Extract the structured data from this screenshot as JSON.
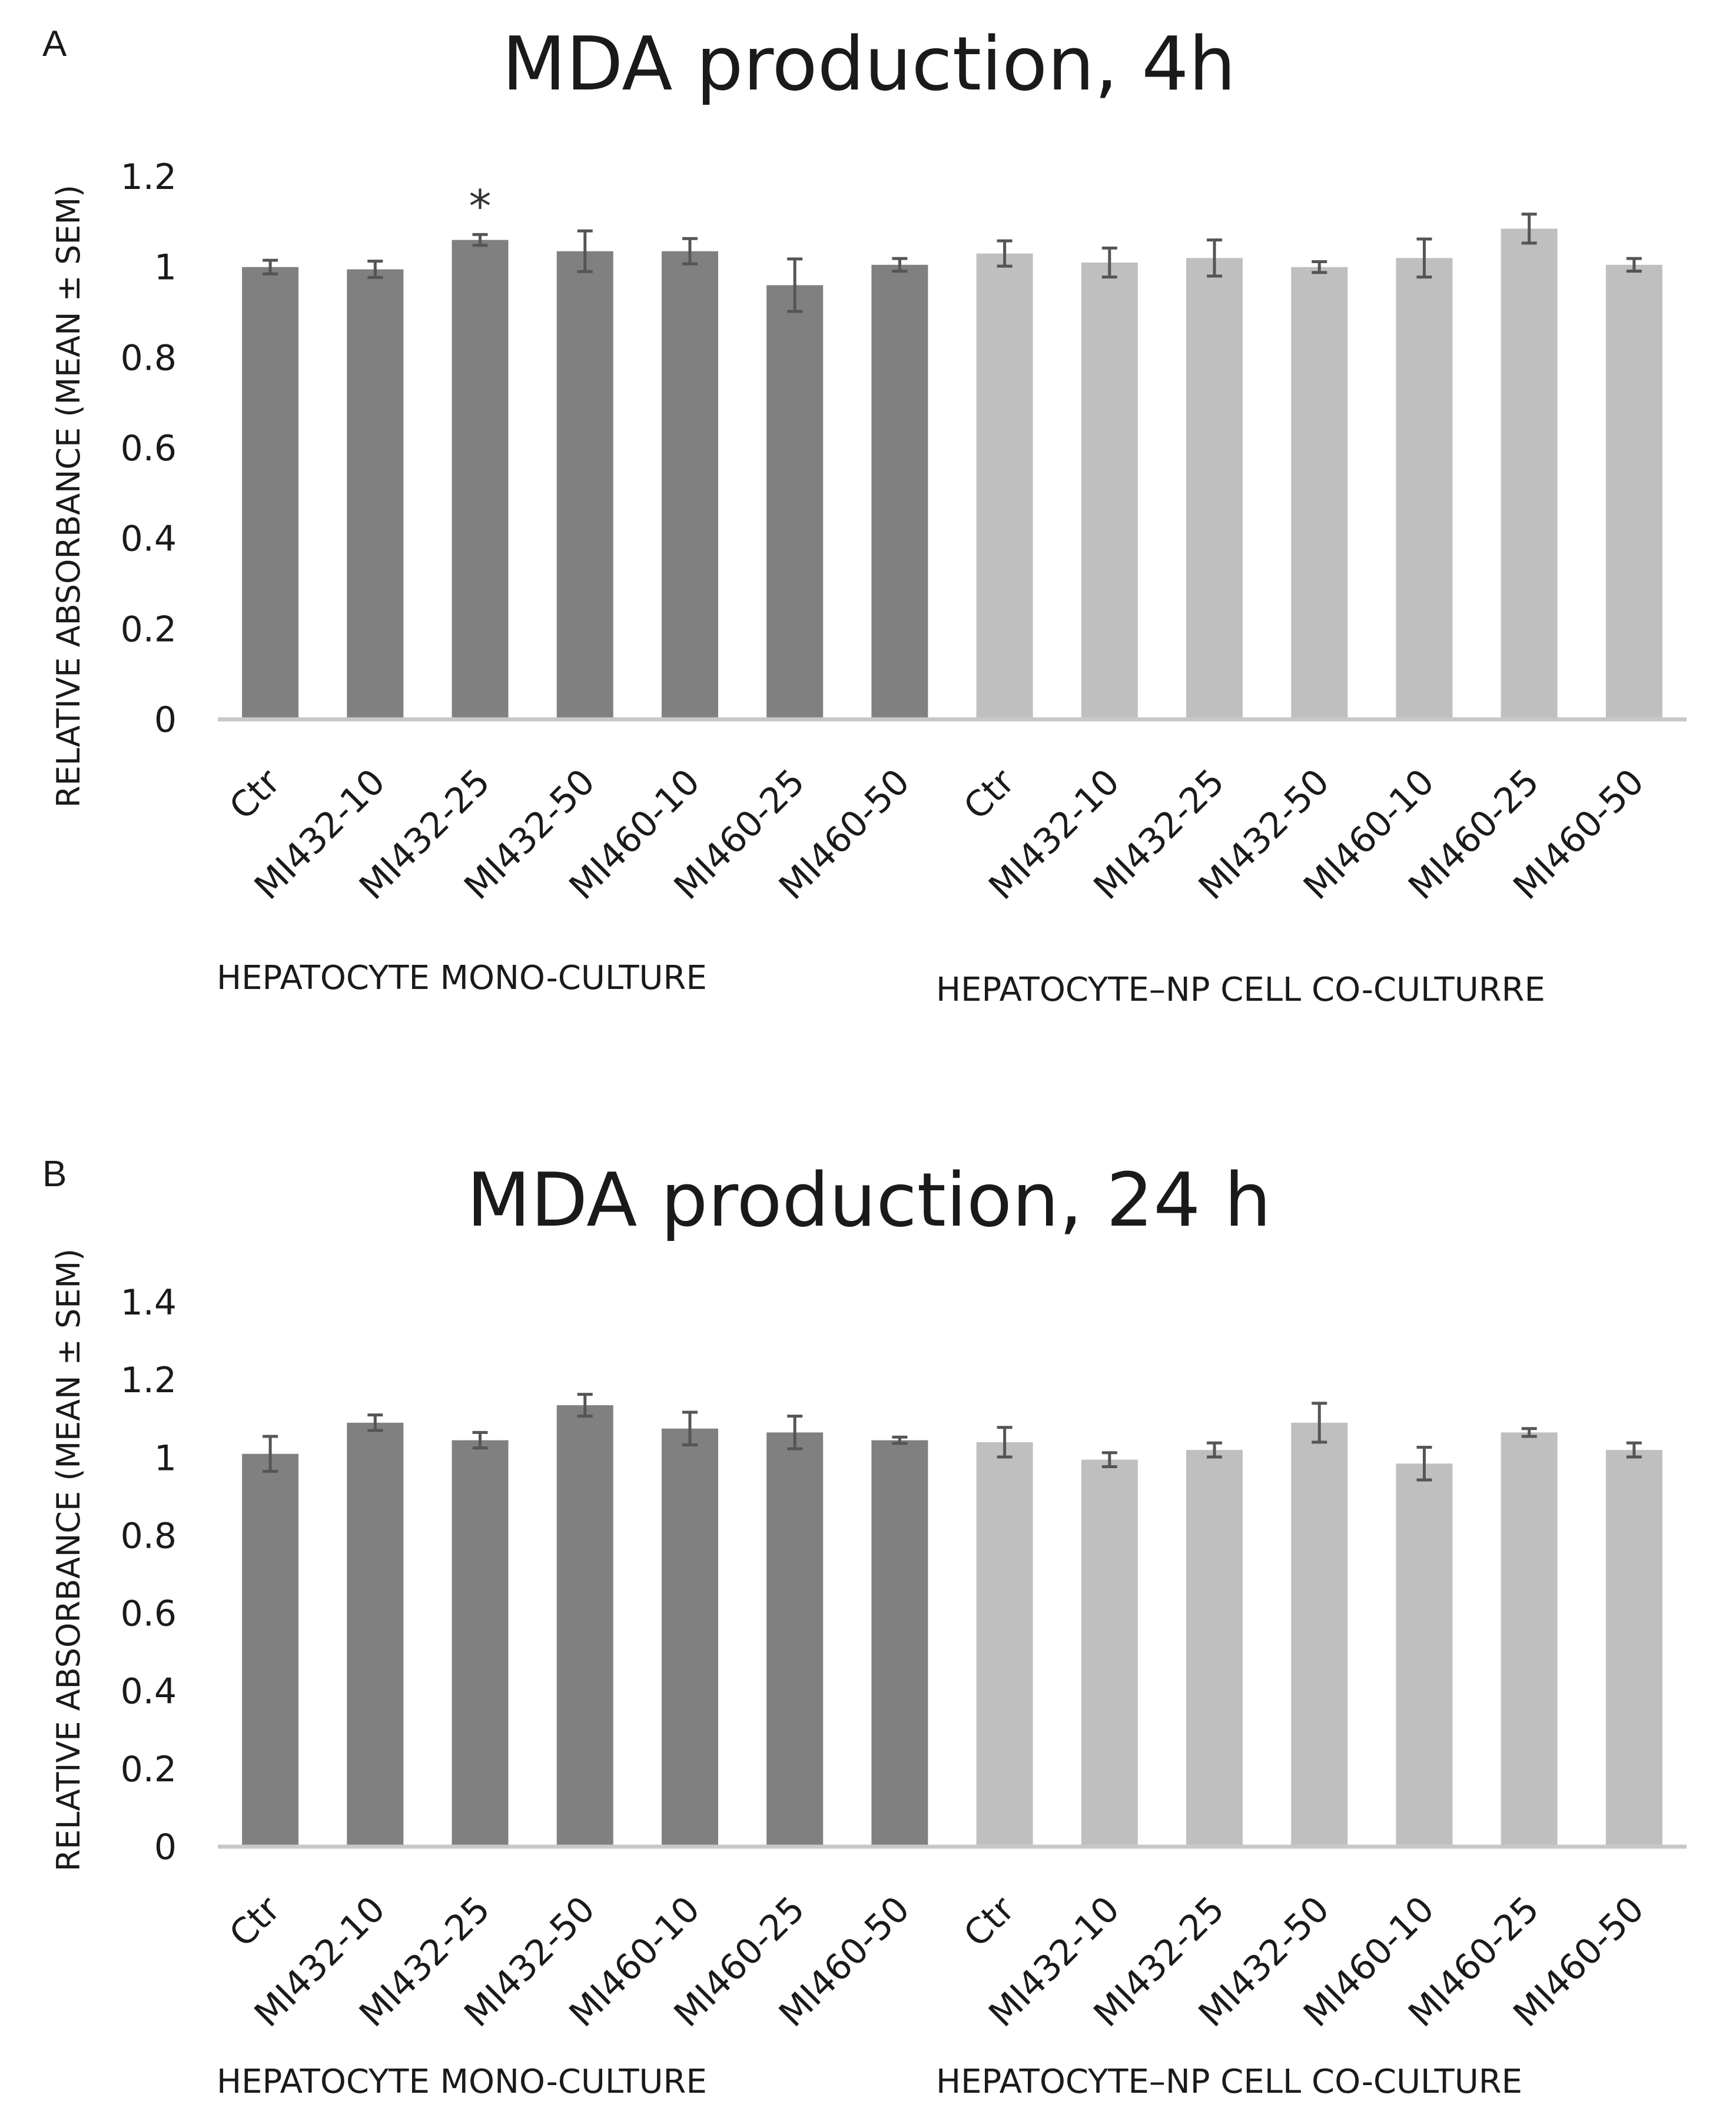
{
  "chart_data": [
    {
      "panel": "A",
      "type": "bar",
      "title": "MDA production, 4h",
      "ylabel": "RELATIVE ABSORBANCE (MEAN ± SEM)",
      "ylim": [
        0,
        1.2
      ],
      "yticks": [
        "0",
        "0.2",
        "0.4",
        "0.6",
        "0.8",
        "1",
        "1.2"
      ],
      "categories": [
        "Ctr",
        "MI432-10",
        "MI432-25",
        "MI432-50",
        "MI460-10",
        "MI460-25",
        "MI460-50",
        "Ctr",
        "MI432-10",
        "MI432-25",
        "MI432-50",
        "MI460-10",
        "MI460-25",
        "MI460-50"
      ],
      "values": [
        1.0,
        0.995,
        1.06,
        1.035,
        1.035,
        0.96,
        1.005,
        1.03,
        1.01,
        1.02,
        1.0,
        1.02,
        1.085,
        1.005
      ],
      "errors": [
        0.015,
        0.018,
        0.012,
        0.045,
        0.028,
        0.058,
        0.014,
        0.028,
        0.032,
        0.04,
        0.012,
        0.042,
        0.032,
        0.014
      ],
      "bar_colors": [
        "#808080",
        "#808080",
        "#808080",
        "#808080",
        "#808080",
        "#808080",
        "#808080",
        "#bfbfbf",
        "#bfbfbf",
        "#bfbfbf",
        "#bfbfbf",
        "#bfbfbf",
        "#bfbfbf",
        "#bfbfbf"
      ],
      "annotations": [
        {
          "index": 2,
          "text": "*"
        }
      ],
      "groups": [
        "HEPATOCYTE MONO-CULTURE",
        "HEPATOCYTE–NP CELL CO-CULTURRE"
      ]
    },
    {
      "panel": "B",
      "type": "bar",
      "title": "MDA production, 24 h",
      "ylabel": "RELATIVE ABSORBANCE (MEAN ± SEM)",
      "ylim": [
        0,
        1.4
      ],
      "yticks": [
        "0",
        "0.2",
        "0.4",
        "0.6",
        "0.8",
        "1",
        "1.2",
        "1.4"
      ],
      "categories": [
        "Ctr",
        "MI432-10",
        "MI432-25",
        "MI432-50",
        "MI460-10",
        "MI460-25",
        "MI460-50",
        "Ctr",
        "MI432-10",
        "MI432-25",
        "MI432-50",
        "MI460-10",
        "MI460-25",
        "MI460-50"
      ],
      "values": [
        1.01,
        1.09,
        1.045,
        1.135,
        1.075,
        1.065,
        1.045,
        1.04,
        0.995,
        1.02,
        1.09,
        0.985,
        1.065,
        1.02
      ],
      "errors": [
        0.045,
        0.02,
        0.02,
        0.028,
        0.042,
        0.042,
        0.008,
        0.038,
        0.018,
        0.018,
        0.05,
        0.042,
        0.01,
        0.018
      ],
      "bar_colors": [
        "#808080",
        "#808080",
        "#808080",
        "#808080",
        "#808080",
        "#808080",
        "#808080",
        "#bfbfbf",
        "#bfbfbf",
        "#bfbfbf",
        "#bfbfbf",
        "#bfbfbf",
        "#bfbfbf",
        "#bfbfbf"
      ],
      "annotations": [],
      "groups": [
        "HEPATOCYTE MONO-CULTURE",
        "HEPATOCYTE–NP CELL CO-CULTURE"
      ]
    }
  ]
}
